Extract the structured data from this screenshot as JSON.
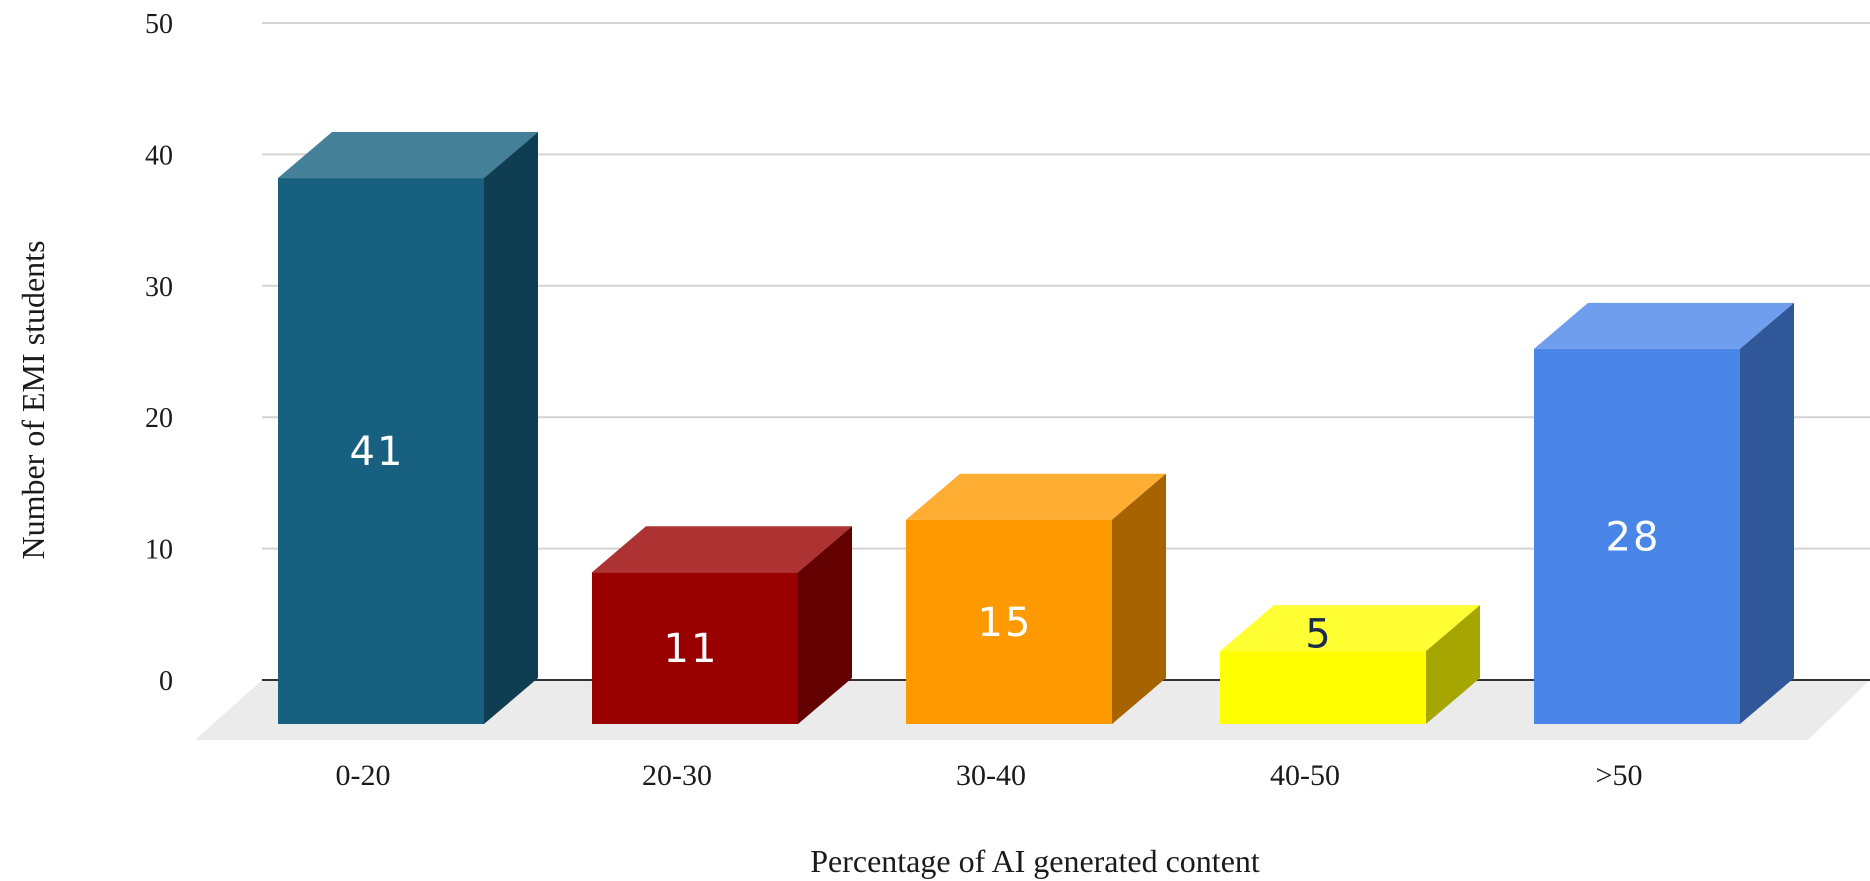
{
  "chart_data": {
    "type": "bar",
    "title": "",
    "xlabel": "Percentage of AI generated content",
    "ylabel": "Number of EMI students",
    "categories": [
      "0-20",
      "20-30",
      "30-40",
      "40-50",
      ">50"
    ],
    "values": [
      41,
      11,
      15,
      5,
      28
    ],
    "data_labels": [
      "41",
      "11",
      "15",
      "5",
      "28"
    ],
    "yticks": [
      "0",
      "10",
      "20",
      "30",
      "40",
      "50"
    ],
    "ylim": [
      0,
      50
    ],
    "grid": true,
    "legend": "none",
    "style": "3d",
    "colors": [
      "#17607F",
      "#990000",
      "#FF9900",
      "#FFFF00",
      "#4A86E8"
    ],
    "label_colors": [
      "#ffffff",
      "#ffffff",
      "#ffffff",
      "#1a2a4a",
      "#ffffff"
    ]
  }
}
